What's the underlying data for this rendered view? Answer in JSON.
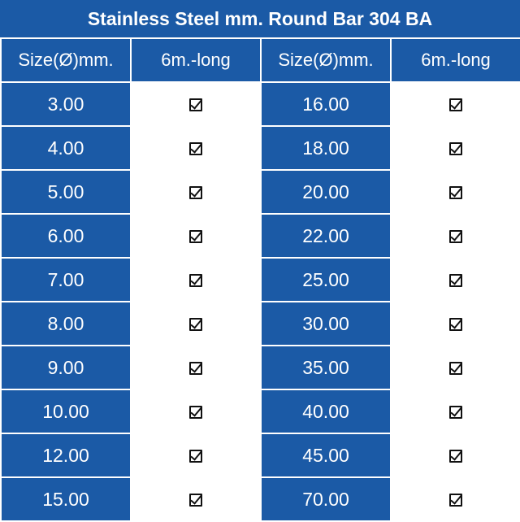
{
  "title": "Stainless Steel mm. Round Bar 304 BA",
  "headers": {
    "size_left": "Size(Ø)mm.",
    "length_left": "6m.-long",
    "size_right": "Size(Ø)mm.",
    "length_right": "6m.-long"
  },
  "rows": [
    {
      "left_size": "3.00",
      "left_available": "☑",
      "right_size": "16.00",
      "right_available": "☑"
    },
    {
      "left_size": "4.00",
      "left_available": "☑",
      "right_size": "18.00",
      "right_available": "☑"
    },
    {
      "left_size": "5.00",
      "left_available": "☑",
      "right_size": "20.00",
      "right_available": "☑"
    },
    {
      "left_size": "6.00",
      "left_available": "☑",
      "right_size": "22.00",
      "right_available": "☑"
    },
    {
      "left_size": "7.00",
      "left_available": "☑",
      "right_size": "25.00",
      "right_available": "☑"
    },
    {
      "left_size": "8.00",
      "left_available": "☑",
      "right_size": "30.00",
      "right_available": "☑"
    },
    {
      "left_size": "9.00",
      "left_available": "☑",
      "right_size": "35.00",
      "right_available": "☑"
    },
    {
      "left_size": "10.00",
      "left_available": "☑",
      "right_size": "40.00",
      "right_available": "☑"
    },
    {
      "left_size": "12.00",
      "left_available": "☑",
      "right_size": "45.00",
      "right_available": "☑"
    },
    {
      "left_size": "15.00",
      "left_available": "☑",
      "right_size": "70.00",
      "right_available": "☑"
    }
  ],
  "colors": {
    "header_blue": "#1b5aa6",
    "cell_white": "#ffffff",
    "checkmark": "#111111"
  },
  "icons": {
    "availability": "checked-box-icon"
  }
}
